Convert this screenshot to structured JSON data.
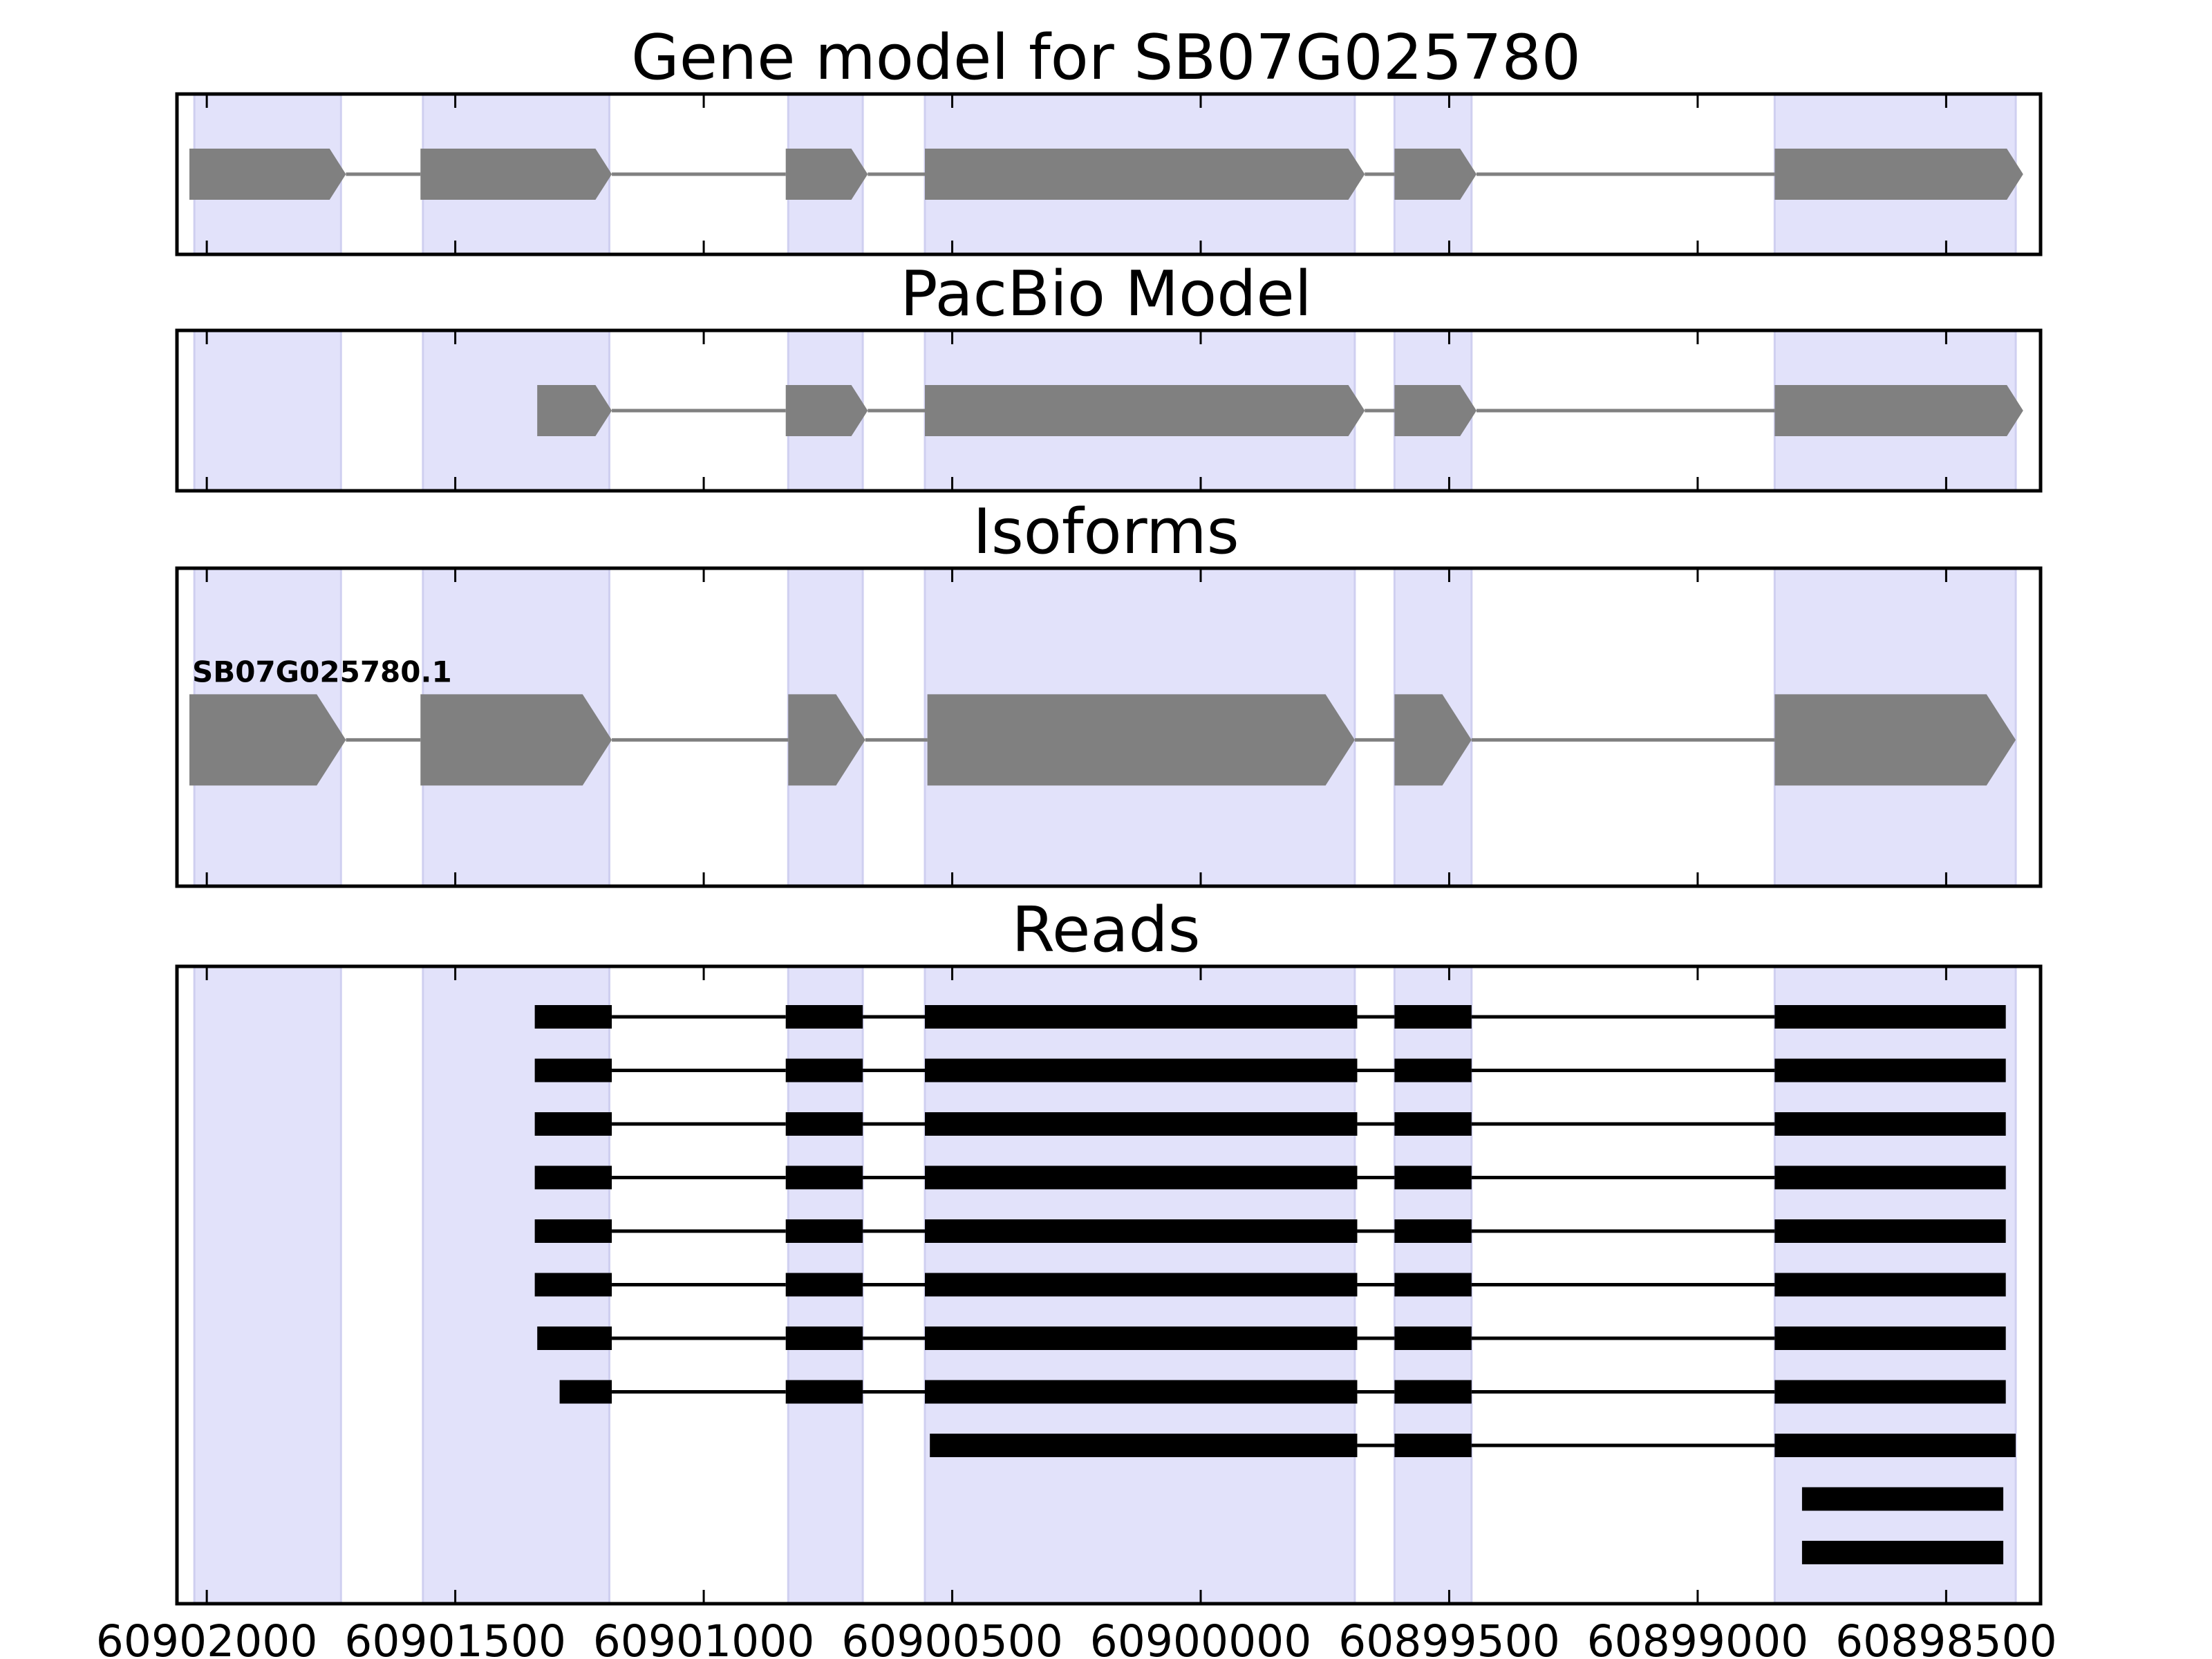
{
  "chart_data": {
    "type": "gene_structure",
    "x_axis": {
      "reversed": true,
      "xlim": [
        60902060,
        60898310
      ],
      "ticks": [
        60902000,
        60901500,
        60901000,
        60900500,
        60900000,
        60899500,
        60899000,
        60898500
      ],
      "tick_labels": [
        "60902000",
        "60901500",
        "60901000",
        "60900500",
        "60900000",
        "60899500",
        "60899000",
        "60898500"
      ]
    },
    "colors": {
      "exon_shade": "#e2e2fa",
      "feature": "#808080",
      "read": "#000000",
      "intron": "#808080"
    },
    "exon_regions": [
      [
        60902025,
        60901730
      ],
      [
        60901565,
        60901190
      ],
      [
        60900830,
        60900680
      ],
      [
        60900555,
        60899690
      ],
      [
        60899610,
        60899455
      ],
      [
        60898845,
        60898360
      ]
    ],
    "panels": [
      {
        "title": "Gene model for SB07G025780",
        "rows": [
          {
            "kind": "feature",
            "label": "",
            "exons": [
              [
                60902035,
                60901720
              ],
              [
                60901570,
                60901185
              ],
              [
                60900835,
                60900670
              ],
              [
                60900555,
                60899670
              ],
              [
                60899610,
                60899445
              ],
              [
                60898845,
                60898345
              ]
            ]
          }
        ]
      },
      {
        "title": "PacBio Model",
        "rows": [
          {
            "kind": "feature",
            "label": "",
            "exons": [
              [
                60901335,
                60901185
              ],
              [
                60900835,
                60900670
              ],
              [
                60900555,
                60899670
              ],
              [
                60899610,
                60899445
              ],
              [
                60898845,
                60898345
              ]
            ]
          }
        ]
      },
      {
        "title": "Isoforms",
        "rows": [
          {
            "kind": "feature",
            "label": "SB07G025780.1",
            "exons": [
              [
                60902035,
                60901720
              ],
              [
                60901570,
                60901185
              ],
              [
                60900830,
                60900675
              ],
              [
                60900550,
                60899690
              ],
              [
                60899610,
                60899455
              ],
              [
                60898845,
                60898360
              ]
            ]
          }
        ]
      },
      {
        "title": "Reads",
        "rows": [
          {
            "kind": "read",
            "exons": [
              [
                60901340,
                60901185
              ],
              [
                60900835,
                60900680
              ],
              [
                60900555,
                60899685
              ],
              [
                60899610,
                60899455
              ],
              [
                60898845,
                60898380
              ]
            ]
          },
          {
            "kind": "read",
            "exons": [
              [
                60901340,
                60901185
              ],
              [
                60900835,
                60900680
              ],
              [
                60900555,
                60899685
              ],
              [
                60899610,
                60899455
              ],
              [
                60898845,
                60898380
              ]
            ]
          },
          {
            "kind": "read",
            "exons": [
              [
                60901340,
                60901185
              ],
              [
                60900835,
                60900680
              ],
              [
                60900555,
                60899685
              ],
              [
                60899610,
                60899455
              ],
              [
                60898845,
                60898380
              ]
            ]
          },
          {
            "kind": "read",
            "exons": [
              [
                60901340,
                60901185
              ],
              [
                60900835,
                60900680
              ],
              [
                60900555,
                60899685
              ],
              [
                60899610,
                60899455
              ],
              [
                60898845,
                60898380
              ]
            ]
          },
          {
            "kind": "read",
            "exons": [
              [
                60901340,
                60901185
              ],
              [
                60900835,
                60900680
              ],
              [
                60900555,
                60899685
              ],
              [
                60899610,
                60899455
              ],
              [
                60898845,
                60898380
              ]
            ]
          },
          {
            "kind": "read",
            "exons": [
              [
                60901340,
                60901185
              ],
              [
                60900835,
                60900680
              ],
              [
                60900555,
                60899685
              ],
              [
                60899610,
                60899455
              ],
              [
                60898845,
                60898380
              ]
            ]
          },
          {
            "kind": "read",
            "exons": [
              [
                60901335,
                60901185
              ],
              [
                60900835,
                60900680
              ],
              [
                60900555,
                60899685
              ],
              [
                60899610,
                60899455
              ],
              [
                60898845,
                60898380
              ]
            ]
          },
          {
            "kind": "read",
            "exons": [
              [
                60901290,
                60901185
              ],
              [
                60900835,
                60900680
              ],
              [
                60900555,
                60899685
              ],
              [
                60899610,
                60899455
              ],
              [
                60898845,
                60898380
              ]
            ]
          },
          {
            "kind": "read",
            "exons": [
              [
                60900545,
                60899685
              ],
              [
                60899610,
                60899455
              ],
              [
                60898845,
                60898360
              ]
            ]
          },
          {
            "kind": "read",
            "exons": [
              [
                60898790,
                60898385
              ]
            ]
          },
          {
            "kind": "read",
            "exons": [
              [
                60898790,
                60898385
              ]
            ]
          }
        ]
      }
    ]
  }
}
